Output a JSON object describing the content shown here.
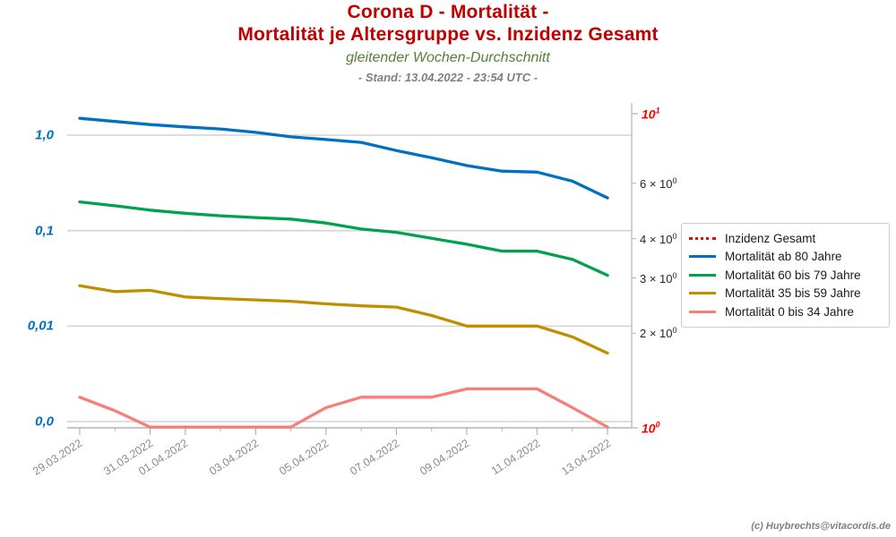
{
  "header": {
    "title_line1": "Corona D - Mortalität -",
    "title_line2": "Mortalität je Altersgruppe vs. Inzidenz Gesamt",
    "subtitle": "gleitender Wochen-Durchschnitt",
    "stand": "- Stand: 13.04.2022 - 23:54 UTC -"
  },
  "footer": {
    "credit": "(c) Huybrechts@vitacordis.de"
  },
  "colors": {
    "title_red": "#c00000",
    "subtitle_green": "#538135",
    "stand_gray": "#7f7f7f",
    "left_axis_blue": "#0070c0",
    "right_axis_red": "#ff0000",
    "grid_gray": "#d8d8d8",
    "spine_gray": "#b3b3b3",
    "xlabel_gray": "#8c8c8c"
  },
  "chart_data": {
    "type": "line",
    "title": "Corona D - Mortalität - Mortalität je Altersgruppe vs. Inzidenz Gesamt",
    "subtitle": "gleitender Wochen-Durchschnitt",
    "x": [
      "29.03.2022",
      "30.03.2022",
      "31.03.2022",
      "01.04.2022",
      "02.04.2022",
      "03.04.2022",
      "04.04.2022",
      "05.04.2022",
      "06.04.2022",
      "07.04.2022",
      "08.04.2022",
      "09.04.2022",
      "10.04.2022",
      "11.04.2022",
      "12.04.2022",
      "13.04.2022"
    ],
    "series": [
      {
        "name": "Inzidenz Gesamt",
        "color": "#ff0000",
        "style": "dotted",
        "axis": "right",
        "values": null
      },
      {
        "name": "Mortalität ab 80 Jahre",
        "color": "#0070c0",
        "style": "solid",
        "axis": "left",
        "values": [
          1.5,
          1.39,
          1.29,
          1.22,
          1.16,
          1.07,
          0.96,
          0.9,
          0.84,
          0.69,
          0.58,
          0.48,
          0.42,
          0.41,
          0.33,
          0.22
        ]
      },
      {
        "name": "Mortalität 60 bis 79 Jahre",
        "color": "#00a24e",
        "style": "solid",
        "axis": "left",
        "values": [
          0.2,
          0.182,
          0.164,
          0.152,
          0.143,
          0.137,
          0.132,
          0.12,
          0.104,
          0.096,
          0.083,
          0.072,
          0.061,
          0.061,
          0.05,
          0.034
        ]
      },
      {
        "name": "Mortalität 35 bis 59 Jahre",
        "color": "#bf8f00",
        "style": "solid",
        "axis": "left",
        "values": [
          0.0265,
          0.023,
          0.0237,
          0.0202,
          0.0194,
          0.0188,
          0.0182,
          0.0171,
          0.0163,
          0.0158,
          0.0129,
          0.01,
          0.01,
          0.01,
          0.0077,
          0.0052
        ]
      },
      {
        "name": "Mortalität 0 bis 34 Jahre",
        "color": "#f87f79",
        "style": "solid",
        "axis": "left",
        "values": [
          0.0018,
          0.0013,
          0,
          0,
          0,
          0,
          0,
          0.0014,
          0.0018,
          0.0018,
          0.0018,
          0.0022,
          0.0022,
          0.0022,
          0.0014,
          0
        ]
      }
    ],
    "left_axis": {
      "scale": "log",
      "tick_labels": [
        "1,0",
        "0,1",
        "0,01",
        "0,0"
      ],
      "tick_values": [
        1,
        0.1,
        0.01,
        0.001
      ]
    },
    "right_axis": {
      "scale": "log",
      "major_ticks": [
        {
          "value": 10,
          "text": "10",
          "sup": "1"
        },
        {
          "value": 1,
          "text": "10",
          "sup": "0"
        }
      ],
      "minor_ticks": [
        {
          "value": 6,
          "text": "6 × 10",
          "sup": "0"
        },
        {
          "value": 4,
          "text": "4 × 10",
          "sup": "0"
        },
        {
          "value": 3,
          "text": "3 × 10",
          "sup": "0"
        },
        {
          "value": 2,
          "text": "2 × 10",
          "sup": "0"
        }
      ]
    },
    "x_ticks": {
      "labels": [
        "29.03.2022",
        "31.03.2022",
        "01.04.2022",
        "03.04.2022",
        "05.04.2022",
        "07.04.2022",
        "09.04.2022",
        "11.04.2022",
        "13.04.2022"
      ],
      "day_indices": [
        0,
        2,
        3,
        5,
        7,
        9,
        11,
        13,
        15
      ]
    },
    "legend_position": "center right",
    "grid": "horizontal-only"
  }
}
